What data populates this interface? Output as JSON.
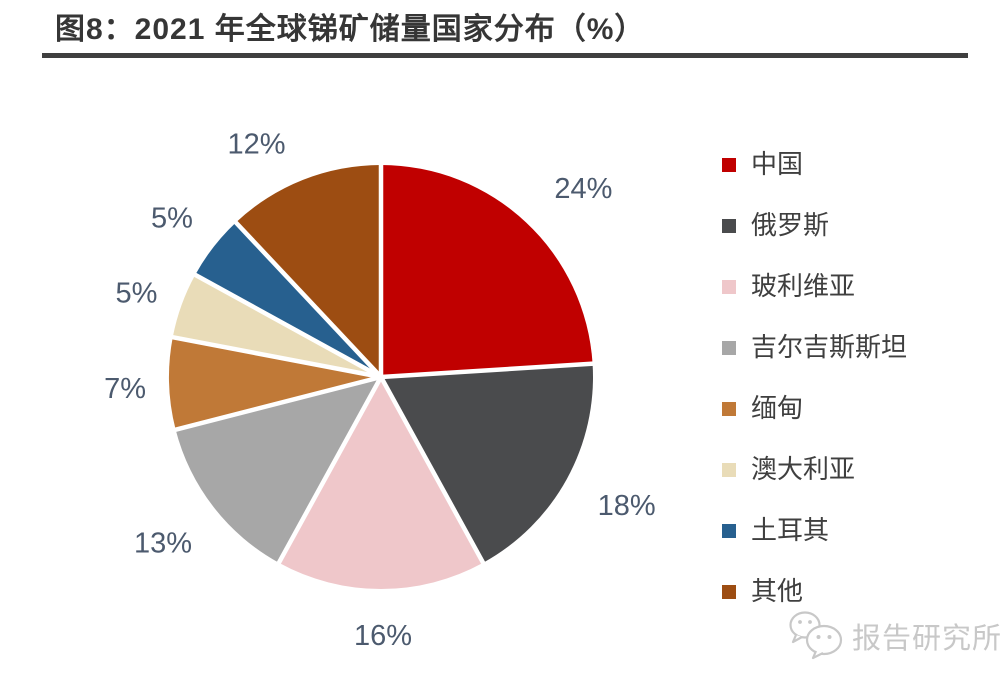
{
  "header": {
    "title": "图8：2021 年全球锑矿储量国家分布（%）",
    "title_color": "#363636",
    "underline_color": "#3F3F3F"
  },
  "chart_data": {
    "type": "pie",
    "title": "2021 年全球锑矿储量国家分布（%）",
    "unit": "%",
    "start_angle_deg": 0,
    "direction": "clockwise",
    "legend_position": "right",
    "categories": [
      "中国",
      "俄罗斯",
      "玻利维亚",
      "吉尔吉斯斯坦",
      "缅甸",
      "澳大利亚",
      "土耳其",
      "其他"
    ],
    "values": [
      24,
      18,
      16,
      13,
      7,
      5,
      5,
      12
    ],
    "labels": [
      "24%",
      "18%",
      "16%",
      "13%",
      "7%",
      "5%",
      "5%",
      "12%"
    ],
    "colors": [
      "#C00000",
      "#4A4B4D",
      "#EFC7CA",
      "#A7A7A7",
      "#C07937",
      "#E9DCB8",
      "#27608F",
      "#9D4D12"
    ],
    "label_color": "#4C5A6E",
    "slice_gap_color": "#FFFFFF"
  },
  "watermark": {
    "text": "报告研究所",
    "icon": "wechat-chat-bubbles-icon",
    "color": "#C8C8C8"
  }
}
